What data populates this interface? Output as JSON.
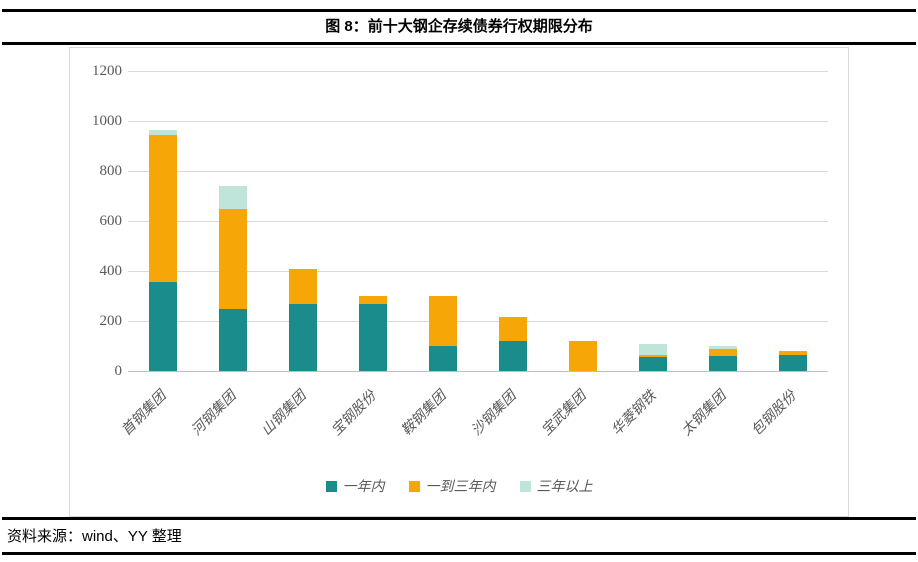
{
  "title": "图 8：前十大钢企存续债券行权期限分布",
  "footer": {
    "source": "资料来源：wind、YY 整理"
  },
  "colors": {
    "within_1y": "#1a8c8c",
    "one_to_three_y": "#f7a608",
    "over_3y": "#bfe4da",
    "grid": "#d9d9d9",
    "axis_line": "#bfbfbf",
    "tick_text": "#595959"
  },
  "chart_data": {
    "type": "bar",
    "stacked": true,
    "title": "图 8：前十大钢企存续债券行权期限分布",
    "categories": [
      "首钢集团",
      "河钢集团",
      "山钢集团",
      "宝钢股份",
      "鞍钢集团",
      "沙钢集团",
      "宝武集团",
      "华菱钢铁",
      "太钢集团",
      "包钢股份"
    ],
    "series": [
      {
        "name": "一年内",
        "color": "#1a8c8c",
        "values": [
          355,
          250,
          270,
          270,
          100,
          120,
          0,
          55,
          60,
          65
        ]
      },
      {
        "name": "一到三年内",
        "color": "#f7a608",
        "values": [
          590,
          400,
          140,
          30,
          200,
          95,
          120,
          10,
          30,
          15
        ]
      },
      {
        "name": "三年以上",
        "color": "#bfe4da",
        "values": [
          20,
          90,
          0,
          0,
          0,
          0,
          0,
          45,
          10,
          0
        ]
      }
    ],
    "stack_totals": [
      965,
      740,
      410,
      300,
      300,
      215,
      120,
      110,
      100,
      80
    ],
    "xlabel": "",
    "ylabel": "",
    "ylim": [
      0,
      1200
    ],
    "yticks": [
      0,
      200,
      400,
      600,
      800,
      1000,
      1200
    ],
    "grid": true,
    "legend_position": "bottom"
  }
}
